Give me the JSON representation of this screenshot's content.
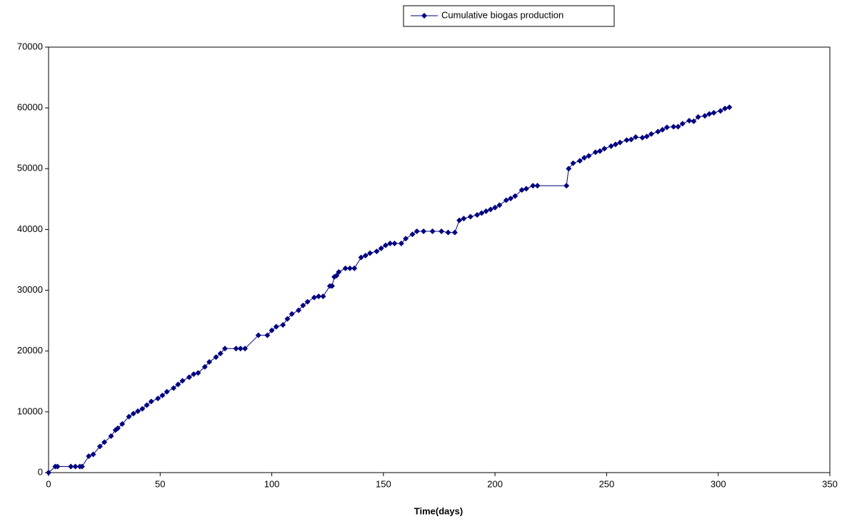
{
  "chart_data": {
    "type": "line",
    "x_label": "Time(days)",
    "x": [
      0,
      3,
      4,
      10,
      12,
      14,
      15,
      18,
      20,
      23,
      25,
      28,
      30,
      31,
      33,
      36,
      38,
      40,
      42,
      44,
      46,
      49,
      51,
      53,
      56,
      58,
      60,
      63,
      65,
      67,
      70,
      72,
      75,
      77,
      79,
      84,
      86,
      88,
      94,
      98,
      100,
      102,
      105,
      107,
      109,
      112,
      114,
      116,
      119,
      121,
      123,
      126,
      127,
      128,
      129,
      130,
      133,
      135,
      137,
      140,
      142,
      144,
      147,
      149,
      151,
      153,
      155,
      158,
      160,
      163,
      165,
      168,
      172,
      176,
      179,
      182,
      184,
      186,
      189,
      192,
      194,
      196,
      198,
      200,
      202,
      205,
      207,
      209,
      212,
      214,
      217,
      219,
      232,
      233,
      235,
      238,
      240,
      242,
      245,
      247,
      249,
      252,
      254,
      256,
      259,
      261,
      263,
      266,
      268,
      270,
      273,
      275,
      277,
      280,
      282,
      284,
      287,
      289,
      291,
      294,
      296,
      298,
      301,
      303,
      305
    ],
    "series": [
      {
        "name": "Cumulative biogas production",
        "color": "#000080",
        "values": [
          0,
          1000,
          1000,
          1000,
          1000,
          1000,
          1000,
          2700,
          3000,
          4300,
          5000,
          6000,
          7000,
          7300,
          8000,
          9200,
          9700,
          10100,
          10500,
          11100,
          11700,
          12200,
          12700,
          13300,
          13900,
          14500,
          15100,
          15700,
          16200,
          16400,
          17400,
          18200,
          19000,
          19600,
          20400,
          20400,
          20400,
          20400,
          22600,
          22600,
          23400,
          24000,
          24300,
          25300,
          26100,
          26700,
          27500,
          28100,
          28800,
          29000,
          29000,
          30700,
          30700,
          32200,
          32400,
          33000,
          33600,
          33600,
          33600,
          35400,
          35700,
          36100,
          36400,
          36900,
          37400,
          37700,
          37700,
          37700,
          38500,
          39200,
          39700,
          39700,
          39700,
          39700,
          39500,
          39500,
          41500,
          41800,
          42100,
          42400,
          42700,
          43000,
          43300,
          43600,
          44000,
          44800,
          45100,
          45500,
          46500,
          46700,
          47200,
          47200,
          47200,
          50000,
          50900,
          51300,
          51800,
          52100,
          52700,
          52900,
          53300,
          53700,
          54000,
          54300,
          54700,
          54800,
          55200,
          55100,
          55300,
          55700,
          56100,
          56400,
          56800,
          56900,
          56900,
          57400,
          57900,
          57800,
          58500,
          58700,
          59000,
          59200,
          59500,
          59900,
          60100
        ]
      }
    ],
    "xlim": [
      0,
      350
    ],
    "xticks": [
      0,
      50,
      100,
      150,
      200,
      250,
      300,
      350
    ],
    "ylim": [
      0,
      70000
    ],
    "yticks": [
      0,
      10000,
      20000,
      30000,
      40000,
      50000,
      60000,
      70000
    ],
    "grid": false,
    "legend": "top"
  }
}
